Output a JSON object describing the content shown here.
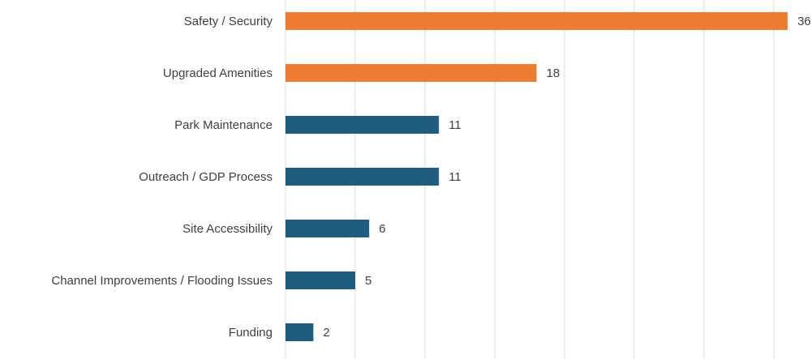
{
  "chart_data": {
    "type": "bar",
    "orientation": "horizontal",
    "categories": [
      "Safety / Security",
      "Upgraded Amenities",
      "Park Maintenance",
      "Outreach / GDP Process",
      "Site Accessibility",
      "Channel Improvements / Flooding Issues",
      "Funding"
    ],
    "values": [
      36,
      18,
      11,
      11,
      6,
      5,
      2
    ],
    "colors": [
      "#ED7D31",
      "#ED7D31",
      "#1F5C80",
      "#1F5C80",
      "#1F5C80",
      "#1F5C80",
      "#1F5C80"
    ],
    "xlim": [
      0,
      36
    ],
    "grid": true,
    "legend": "none",
    "title": "",
    "xlabel": "",
    "ylabel": ""
  }
}
